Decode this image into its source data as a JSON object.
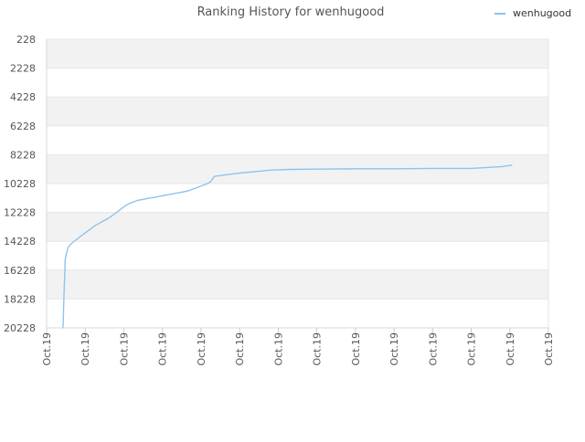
{
  "chart_data": {
    "type": "line",
    "title": "Ranking History for wenhugood",
    "xlabel": "",
    "ylabel": "",
    "y_inverted": true,
    "ylim": [
      228,
      20228
    ],
    "y_ticks": [
      228,
      2228,
      4228,
      6228,
      8228,
      10228,
      12228,
      14228,
      16228,
      18228,
      20228
    ],
    "y_tick_labels": [
      "228",
      "2228",
      "4228",
      "6228",
      "8228",
      "10228",
      "12228",
      "14228",
      "16228",
      "18228",
      "20228"
    ],
    "x_tick_labels": [
      "Oct.19",
      "Oct.19",
      "Oct.19",
      "Oct.19",
      "Oct.19",
      "Oct.19",
      "Oct.19",
      "Oct.19",
      "Oct.19",
      "Oct.19",
      "Oct.19",
      "Oct.19",
      "Oct.19",
      "Oct.19"
    ],
    "xlim": [
      0,
      13
    ],
    "grid": true,
    "legend_position": "top-right",
    "colors": {
      "line": "#8ec4ee",
      "band": "#f2f2f2",
      "grid": "#e6e6e6",
      "text": "#555555"
    },
    "series": [
      {
        "name": "wenhugood",
        "x": [
          0.42,
          0.43,
          0.44,
          0.46,
          0.47,
          0.48,
          0.5,
          0.55,
          0.6,
          0.66,
          0.75,
          0.85,
          0.95,
          1.05,
          1.15,
          1.25,
          1.35,
          1.45,
          1.55,
          1.65,
          1.75,
          1.85,
          1.95,
          2.05,
          2.15,
          2.25,
          2.35,
          2.45,
          2.55,
          2.65,
          2.75,
          2.85,
          2.95,
          3.05,
          3.15,
          3.25,
          3.35,
          3.45,
          3.55,
          3.65,
          3.75,
          3.85,
          3.95,
          4.05,
          4.15,
          4.25,
          4.3,
          4.34,
          4.4,
          4.5,
          4.7,
          5.0,
          5.4,
          5.8,
          6.3,
          7.0,
          8.0,
          9.0,
          10.0,
          11.0,
          11.8,
          12.05
        ],
        "y": [
          20228,
          19900,
          18800,
          17200,
          16600,
          15500,
          15250,
          14700,
          14500,
          14350,
          14150,
          13950,
          13750,
          13550,
          13350,
          13150,
          13000,
          12850,
          12700,
          12550,
          12350,
          12150,
          11950,
          11750,
          11600,
          11500,
          11400,
          11350,
          11300,
          11250,
          11200,
          11150,
          11100,
          11050,
          11000,
          10950,
          10900,
          10850,
          10800,
          10750,
          10650,
          10550,
          10450,
          10350,
          10250,
          10100,
          9900,
          9750,
          9700,
          9680,
          9600,
          9500,
          9400,
          9300,
          9250,
          9230,
          9200,
          9200,
          9180,
          9180,
          9050,
          8950
        ]
      }
    ]
  }
}
